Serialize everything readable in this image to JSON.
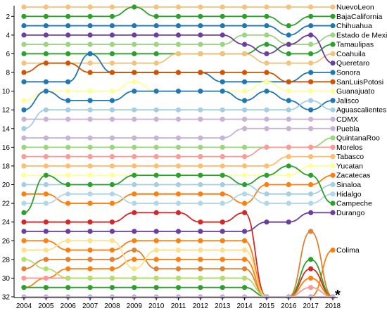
{
  "chart_data": {
    "type": "line",
    "subtype": "bump chart (rank over time)",
    "x": [
      2004,
      2005,
      2006,
      2007,
      2008,
      2009,
      2010,
      2011,
      2012,
      2013,
      2014,
      2015,
      2016,
      2017,
      2018
    ],
    "y_axis": {
      "min": 0,
      "max": 32,
      "inverted": true,
      "ticks": [
        2,
        4,
        6,
        8,
        10,
        12,
        14,
        16,
        18,
        20,
        22,
        24,
        26,
        28,
        30,
        32
      ]
    },
    "grid": false,
    "legend": "labels at right end of each series",
    "marker": "*",
    "series": [
      {
        "name": "NuevoLeon",
        "color": "#f4c27a",
        "values": [
          1,
          1,
          1,
          1,
          1,
          1,
          1,
          1,
          1,
          1,
          1,
          1,
          1,
          1,
          1
        ]
      },
      {
        "name": "BajaCalifornia",
        "color": "#2ca02c",
        "values": [
          2,
          2,
          2,
          2,
          2,
          1,
          2,
          2,
          2,
          2,
          2,
          2,
          3,
          2,
          2
        ]
      },
      {
        "name": "Chihuahua",
        "color": "#1f77b4",
        "values": [
          3,
          3,
          3,
          3,
          3,
          3,
          3,
          3,
          3,
          3,
          3,
          3,
          4,
          3,
          3
        ]
      },
      {
        "name": "Estado de Mexico",
        "color": "#9dd47f",
        "values": [
          5,
          5,
          5,
          5,
          5,
          5,
          5,
          5,
          5,
          5,
          4,
          4,
          5,
          5,
          4
        ]
      },
      {
        "name": "Tamaulipas",
        "color": "#2ca02c",
        "values": [
          6,
          6,
          6,
          6,
          6,
          6,
          6,
          6,
          6,
          6,
          6,
          5,
          6,
          6,
          5
        ]
      },
      {
        "name": "Coahuila",
        "color": "#f4c27a",
        "values": [
          7,
          7,
          7,
          7,
          7,
          7,
          7,
          6,
          6,
          6,
          6,
          7,
          7,
          7,
          6
        ]
      },
      {
        "name": "Queretaro",
        "color": "#6b3fa0",
        "values": [
          4,
          4,
          4,
          4,
          4,
          4,
          4,
          4,
          4,
          4,
          5,
          6,
          5,
          4,
          7
        ]
      },
      {
        "name": "Sonora",
        "color": "#1f77b4",
        "values": [
          9,
          9,
          9,
          6,
          8,
          8,
          8,
          8,
          8,
          9,
          9,
          9,
          9,
          8,
          8
        ]
      },
      {
        "name": "SanLuisPotosi",
        "color": "#d35400",
        "values": [
          8,
          7,
          7,
          8,
          8,
          8,
          8,
          8,
          8,
          8,
          8,
          8,
          9,
          9,
          9
        ]
      },
      {
        "name": "Guanajuato",
        "color": "#ffff99",
        "values": [
          11,
          10,
          10,
          10,
          10,
          9,
          10,
          10,
          10,
          10,
          10,
          9,
          10,
          10,
          10
        ]
      },
      {
        "name": "Jalisco",
        "color": "#1f77b4",
        "values": [
          12,
          10,
          11,
          11,
          11,
          10,
          10,
          10,
          10,
          10,
          11,
          10,
          11,
          12,
          11
        ]
      },
      {
        "name": "Aguascalientes",
        "color": "#a6cee3",
        "values": [
          14,
          12,
          12,
          12,
          12,
          12,
          12,
          12,
          12,
          12,
          12,
          12,
          12,
          11,
          12
        ]
      },
      {
        "name": "CDMX",
        "color": "#cab2d6",
        "values": [
          13,
          13,
          13,
          13,
          13,
          13,
          13,
          13,
          13,
          13,
          13,
          13,
          13,
          13,
          13
        ]
      },
      {
        "name": "Puebla",
        "color": "#cab2d6",
        "values": [
          15,
          15,
          15,
          15,
          15,
          15,
          15,
          15,
          15,
          15,
          14,
          14,
          14,
          14,
          14
        ]
      },
      {
        "name": "QuintanaRoo",
        "color": "#9dd47f",
        "values": [
          16,
          16,
          16,
          16,
          16,
          16,
          16,
          16,
          16,
          16,
          16,
          16,
          16,
          16,
          15
        ]
      },
      {
        "name": "Morelos",
        "color": "#fb9a99",
        "values": [
          17,
          17,
          17,
          17,
          17,
          17,
          17,
          17,
          17,
          17,
          17,
          16,
          16,
          16,
          16
        ]
      },
      {
        "name": "Tabasco",
        "color": "#fdbf6f",
        "values": [
          18,
          18,
          18,
          18,
          18,
          18,
          18,
          18,
          18,
          18,
          18,
          18,
          17,
          17,
          17
        ]
      },
      {
        "name": "Yucatan",
        "color": "#ffff99",
        "values": [
          19,
          19,
          19,
          19,
          19,
          19,
          19,
          19,
          19,
          19,
          19,
          19,
          19,
          18,
          18
        ]
      },
      {
        "name": "Zacatecas",
        "color": "#ff7f0e",
        "values": [
          21,
          21,
          22,
          22,
          22,
          21,
          21,
          21,
          21,
          21,
          22,
          20,
          20,
          20,
          19
        ]
      },
      {
        "name": "Sinaloa",
        "color": "#a6cee3",
        "values": [
          20,
          20,
          20,
          20,
          20,
          20,
          20,
          20,
          20,
          20,
          20,
          21,
          21,
          21,
          20
        ]
      },
      {
        "name": "Hidalgo",
        "color": "#b0d7e8",
        "values": [
          22,
          22,
          21,
          21,
          21,
          22,
          22,
          22,
          22,
          22,
          21,
          22,
          22,
          22,
          21
        ]
      },
      {
        "name": "Campeche",
        "color": "#2ca02c",
        "values": [
          23,
          19,
          20,
          20,
          20,
          19,
          19,
          19,
          19,
          19,
          20,
          19,
          18,
          19,
          22
        ]
      },
      {
        "name": "Durango",
        "color": "#6b3fa0",
        "values": [
          25,
          25,
          25,
          25,
          25,
          25,
          25,
          25,
          25,
          25,
          25,
          24,
          24,
          23,
          23
        ]
      },
      {
        "name": "Colima",
        "color": "#ff7f0e",
        "values": [
          31,
          30,
          29,
          29,
          29,
          28,
          28,
          28,
          28,
          28,
          28,
          32,
          32,
          32,
          27
        ]
      },
      {
        "name": "",
        "color": "#d62728",
        "values": [
          24,
          24,
          24,
          24,
          24,
          23,
          23,
          23,
          24,
          24,
          23,
          32,
          32,
          29,
          32
        ]
      },
      {
        "name": "",
        "color": "#2ca02c",
        "values": [
          31,
          31,
          31,
          31,
          31,
          31,
          31,
          31,
          31,
          31,
          31,
          32,
          32,
          28,
          32
        ]
      },
      {
        "name": "",
        "color": "#fb9a99",
        "values": [
          30,
          30,
          30,
          30,
          30,
          30,
          30,
          30,
          30,
          30,
          30,
          32,
          32,
          31,
          32
        ]
      },
      {
        "name": "",
        "color": "#e08030",
        "values": [
          29,
          28,
          28,
          28,
          28,
          27,
          29,
          29,
          29,
          29,
          29,
          32,
          32,
          25,
          32
        ]
      },
      {
        "name": "",
        "color": "#ff7f0e",
        "values": [
          26,
          26,
          27,
          27,
          27,
          26,
          26,
          26,
          26,
          26,
          26,
          32,
          32,
          30,
          32
        ]
      },
      {
        "name": "",
        "color": "#ffe08a",
        "values": [
          27,
          27,
          26,
          26,
          26,
          29,
          27,
          27,
          27,
          27,
          27,
          32,
          32,
          32,
          32
        ]
      },
      {
        "name": "",
        "color": "#b3de69",
        "values": [
          28,
          29,
          30,
          30,
          30,
          30,
          30,
          30,
          30,
          30,
          30,
          32,
          32,
          32,
          32
        ]
      },
      {
        "name": "",
        "color": "#c7b0d8",
        "values": [
          32,
          32,
          32,
          32,
          32,
          32,
          32,
          32,
          32,
          32,
          32,
          32,
          32,
          32,
          32
        ]
      }
    ]
  }
}
